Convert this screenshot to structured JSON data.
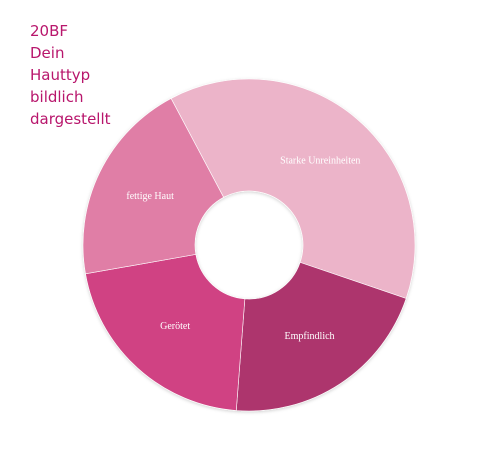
{
  "chart_data": {
    "type": "donut",
    "title": [
      "20BF",
      "Dein",
      "Hauttyp",
      "bildlich",
      "dargestellt"
    ],
    "categories": [
      "Starke Unreinheiten",
      "Empfindlich",
      "Gerötet",
      "fettige Haut"
    ],
    "values": [
      38,
      21,
      21,
      20
    ],
    "colors": [
      "#ecb4c9",
      "#ad356d",
      "#d04283",
      "#e07ea6"
    ]
  }
}
